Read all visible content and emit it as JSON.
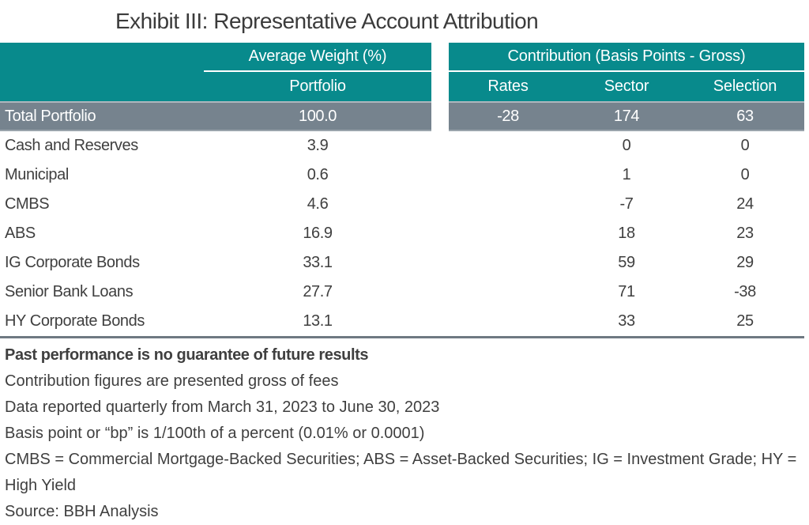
{
  "title": "Exhibit III: Representative Account Attribution",
  "colors": {
    "header_teal": "#088a8c",
    "total_row_gray": "#76838e",
    "table_border": "#6e7982",
    "body_text": "#3f3f3f",
    "header_text": "#ffffff"
  },
  "table": {
    "left_header": {
      "group_label": "Average Weight (%)",
      "sub_label": "Portfolio"
    },
    "right_header": {
      "group_label": "Contribution (Basis Points - Gross)",
      "columns": [
        "Rates",
        "Sector",
        "Selection"
      ]
    },
    "total_row": {
      "label": "Total Portfolio",
      "weight": "100.0",
      "rates": "-28",
      "sector": "174",
      "selection": "63"
    },
    "rows": [
      {
        "label": "Cash and Reserves",
        "weight": "3.9",
        "rates": "",
        "sector": "0",
        "selection": "0"
      },
      {
        "label": "Municipal",
        "weight": "0.6",
        "rates": "",
        "sector": "1",
        "selection": "0"
      },
      {
        "label": "CMBS",
        "weight": "4.6",
        "rates": "",
        "sector": "-7",
        "selection": "24"
      },
      {
        "label": "ABS",
        "weight": "16.9",
        "rates": "",
        "sector": "18",
        "selection": "23"
      },
      {
        "label": "IG Corporate Bonds",
        "weight": "33.1",
        "rates": "",
        "sector": "59",
        "selection": "29"
      },
      {
        "label": "Senior Bank Loans",
        "weight": "27.7",
        "rates": "",
        "sector": "71",
        "selection": "-38"
      },
      {
        "label": "HY Corporate Bonds",
        "weight": "13.1",
        "rates": "",
        "sector": "33",
        "selection": "25"
      }
    ]
  },
  "footnotes": {
    "past_performance": "Past performance is no guarantee of future results",
    "lines": [
      "Contribution figures are presented gross of fees",
      "Data reported quarterly from March 31, 2023 to June 30, 2023",
      "Basis point or “bp” is 1/100th of a percent (0.01% or 0.0001)",
      "CMBS = Commercial Mortgage-Backed Securities; ABS = Asset-Backed Securities; IG = Investment Grade; HY = High Yield",
      "Source: BBH Analysis"
    ]
  }
}
